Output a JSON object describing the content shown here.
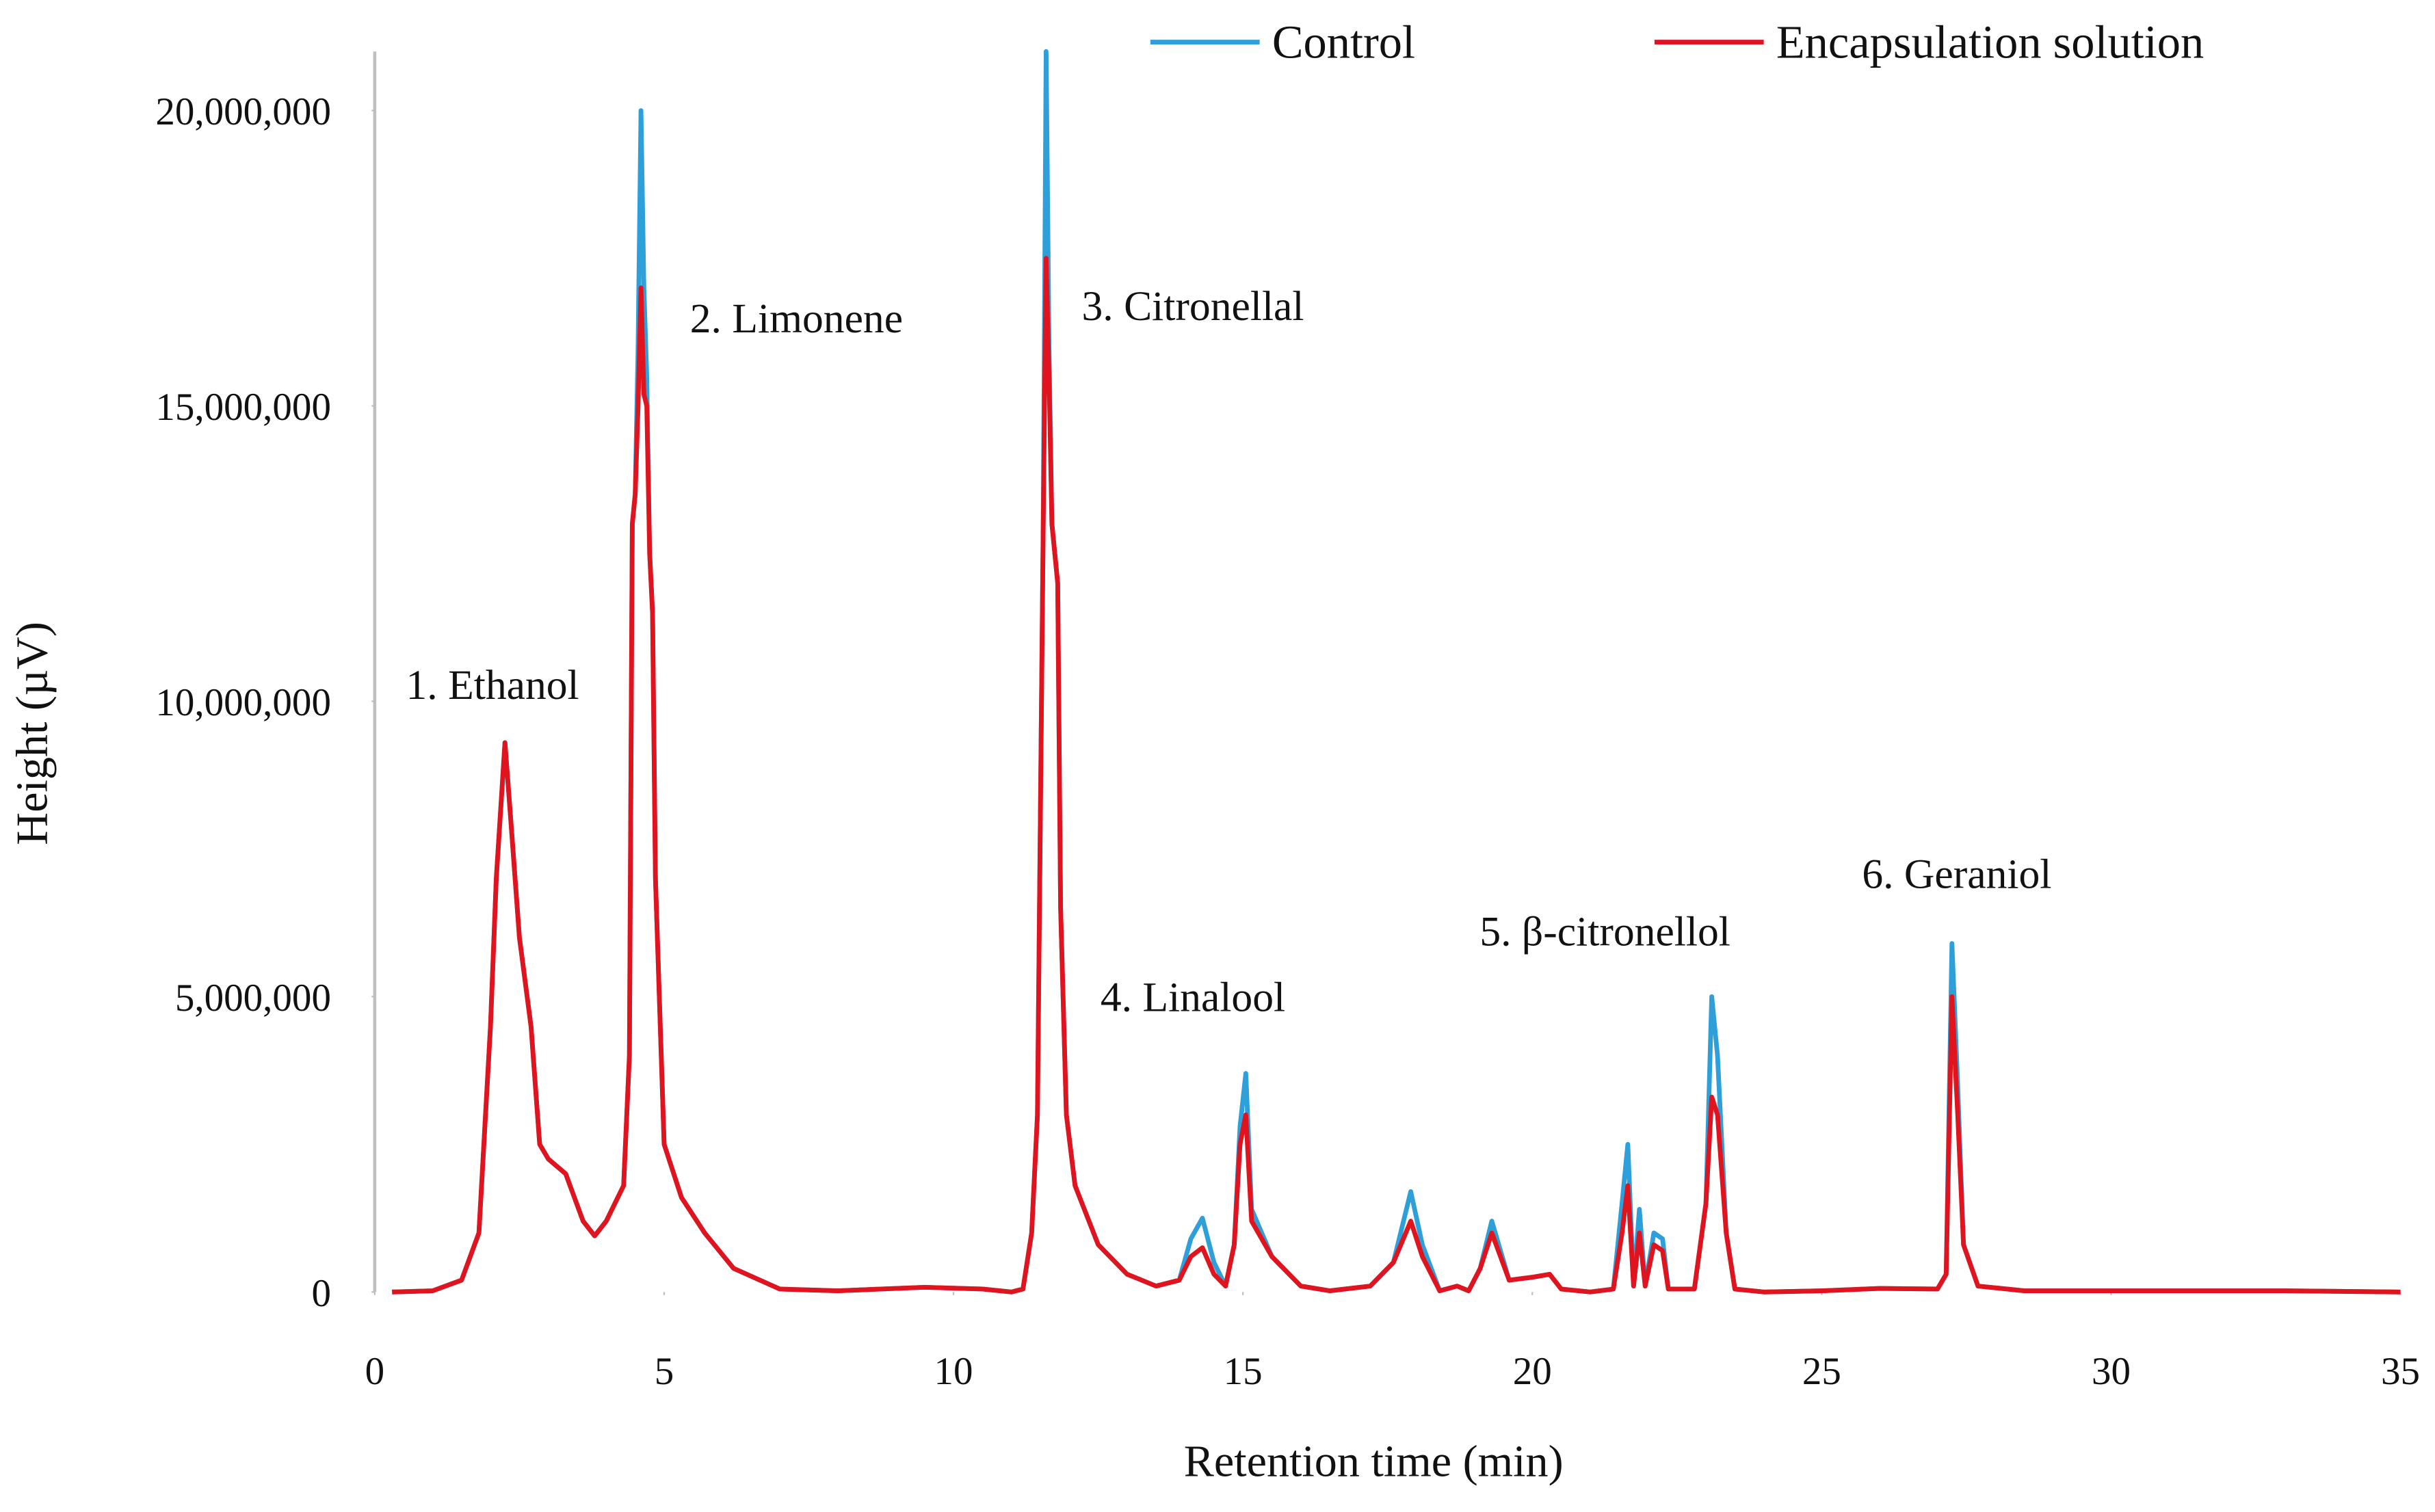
{
  "chart_data": {
    "type": "line",
    "x_label": "Retention time (min)",
    "y_label": "Height (µV)",
    "annotations": [
      "1. Ethanol",
      "2. Limonene",
      "3. Citronellal",
      "4. Linalool",
      "5. β-citronellol",
      "6. Geraniol"
    ],
    "xlim": [
      0,
      35
    ],
    "xticks": [
      0,
      5,
      10,
      15,
      20,
      25,
      30,
      35
    ],
    "ylim": [
      0,
      21000000
    ],
    "yticks": [
      0,
      {
        "value": 5000000,
        "label": "5,000,000"
      },
      {
        "value": 10000000,
        "label": "10,000,000"
      },
      {
        "value": 15000000,
        "label": "15,000,000"
      },
      {
        "value": 20000000,
        "label": "20,000,000"
      }
    ],
    "grid": false,
    "legend": "top",
    "x": [
      0.3,
      1.0,
      1.5,
      1.8,
      2.0,
      2.1,
      2.25,
      2.35,
      2.5,
      2.7,
      2.85,
      3.0,
      3.3,
      3.6,
      3.8,
      4.0,
      4.3,
      4.4,
      4.45,
      4.5,
      4.55,
      4.6,
      4.65,
      4.7,
      4.75,
      4.8,
      4.85,
      4.9,
      5.0,
      5.3,
      5.7,
      6.2,
      7.0,
      8.0,
      9.5,
      10.5,
      11.0,
      11.2,
      11.35,
      11.45,
      11.55,
      11.6,
      11.65,
      11.7,
      11.8,
      11.85,
      11.95,
      12.1,
      12.5,
      13.0,
      13.5,
      13.9,
      14.1,
      14.3,
      14.5,
      14.7,
      14.85,
      14.95,
      15.05,
      15.15,
      15.5,
      16.0,
      16.5,
      17.2,
      17.6,
      17.9,
      18.1,
      18.4,
      18.7,
      18.9,
      19.1,
      19.3,
      19.6,
      20.0,
      20.3,
      20.5,
      21.0,
      21.4,
      21.55,
      21.65,
      21.75,
      21.85,
      21.95,
      22.1,
      22.25,
      22.35,
      22.8,
      23.0,
      23.1,
      23.2,
      23.35,
      23.5,
      24.0,
      25.0,
      26.0,
      27.0,
      27.15,
      27.25,
      27.35,
      27.45,
      27.7,
      28.5,
      30.0,
      33.0,
      35.0
    ],
    "series": [
      {
        "name": "Control",
        "color": "#2e9fd8",
        "values": [
          0,
          20000,
          200000,
          1000000,
          4500000,
          7000000,
          9300000,
          8000000,
          6000000,
          4500000,
          2500000,
          2250000,
          2000000,
          1200000,
          950000,
          1200000,
          1800000,
          4000000,
          13000000,
          13500000,
          16000000,
          20000000,
          17000000,
          15500000,
          12500000,
          11500000,
          7000000,
          5500000,
          2500000,
          1600000,
          1000000,
          400000,
          50000,
          20000,
          80000,
          50000,
          0,
          50000,
          1000000,
          3000000,
          13000000,
          21000000,
          16000000,
          13000000,
          12000000,
          6500000,
          3000000,
          1800000,
          800000,
          300000,
          100000,
          200000,
          900000,
          1250000,
          500000,
          100000,
          800000,
          2800000,
          3700000,
          1400000,
          600000,
          100000,
          20000,
          100000,
          500000,
          1700000,
          800000,
          20000,
          100000,
          20000,
          400000,
          1200000,
          200000,
          250000,
          300000,
          50000,
          0,
          50000,
          1500000,
          2500000,
          100000,
          1400000,
          100000,
          1000000,
          900000,
          50000,
          50000,
          1500000,
          5000000,
          4000000,
          1000000,
          50000,
          0,
          20000,
          60000,
          50000,
          300000,
          5900000,
          3500000,
          800000,
          100000,
          20000,
          20000,
          20000,
          0
        ]
      },
      {
        "name": "Encapsulation solution",
        "color": "#e0141e",
        "values": [
          0,
          20000,
          200000,
          1000000,
          4500000,
          7000000,
          9300000,
          8000000,
          6000000,
          4500000,
          2500000,
          2250000,
          2000000,
          1200000,
          950000,
          1200000,
          1800000,
          4000000,
          13000000,
          13500000,
          15000000,
          17000000,
          15200000,
          15000000,
          12500000,
          11500000,
          7000000,
          5500000,
          2500000,
          1600000,
          1000000,
          400000,
          50000,
          20000,
          80000,
          50000,
          0,
          50000,
          1000000,
          3000000,
          13000000,
          17500000,
          15500000,
          13000000,
          12000000,
          6500000,
          3000000,
          1800000,
          800000,
          300000,
          100000,
          200000,
          600000,
          750000,
          300000,
          100000,
          800000,
          2500000,
          3000000,
          1200000,
          600000,
          100000,
          20000,
          100000,
          500000,
          1200000,
          600000,
          20000,
          100000,
          20000,
          400000,
          1000000,
          200000,
          250000,
          300000,
          50000,
          0,
          50000,
          1000000,
          1800000,
          100000,
          1000000,
          100000,
          800000,
          700000,
          50000,
          50000,
          1500000,
          3300000,
          3000000,
          1000000,
          50000,
          0,
          20000,
          60000,
          50000,
          300000,
          5000000,
          3000000,
          800000,
          100000,
          20000,
          20000,
          20000,
          0
        ]
      }
    ]
  }
}
